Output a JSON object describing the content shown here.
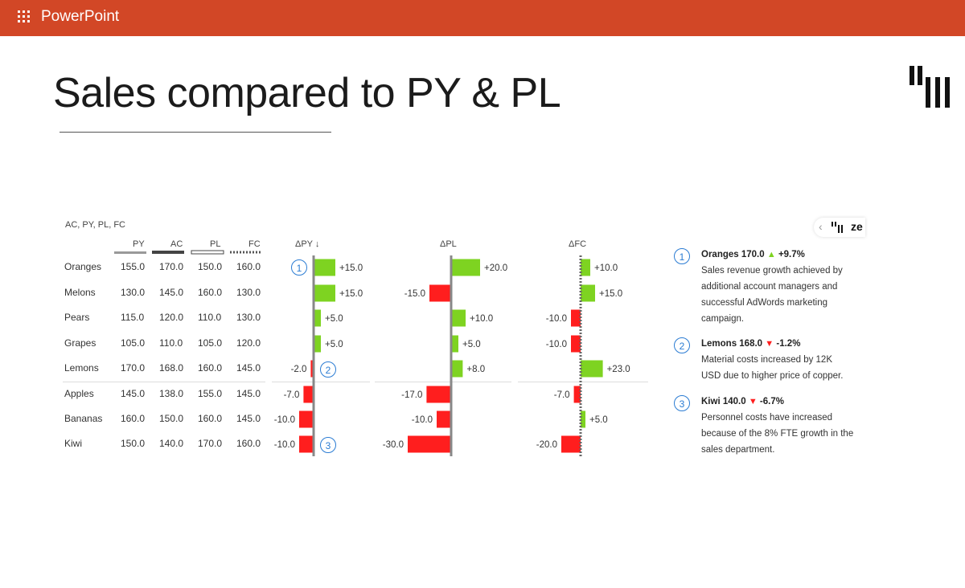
{
  "app": {
    "name": "PowerPoint"
  },
  "slide": {
    "title": "Sales compared to PY & PL"
  },
  "chart_caption": "AC, PY, PL, FC",
  "table": {
    "headers": [
      "PY",
      "AC",
      "PL",
      "FC"
    ],
    "rows": [
      {
        "label": "Oranges",
        "PY": "155.0",
        "AC": "170.0",
        "PL": "150.0",
        "FC": "160.0"
      },
      {
        "label": "Melons",
        "PY": "130.0",
        "AC": "145.0",
        "PL": "160.0",
        "FC": "130.0"
      },
      {
        "label": "Pears",
        "PY": "115.0",
        "AC": "120.0",
        "PL": "110.0",
        "FC": "130.0"
      },
      {
        "label": "Grapes",
        "PY": "105.0",
        "AC": "110.0",
        "PL": "105.0",
        "FC": "120.0"
      },
      {
        "label": "Lemons",
        "PY": "170.0",
        "AC": "168.0",
        "PL": "160.0",
        "FC": "145.0"
      },
      {
        "label": "Apples",
        "PY": "145.0",
        "AC": "138.0",
        "PL": "155.0",
        "FC": "145.0"
      },
      {
        "label": "Bananas",
        "PY": "160.0",
        "AC": "150.0",
        "PL": "160.0",
        "FC": "145.0"
      },
      {
        "label": "Kiwi",
        "PY": "150.0",
        "AC": "140.0",
        "PL": "170.0",
        "FC": "160.0"
      }
    ]
  },
  "chart_data": [
    {
      "type": "bar",
      "orientation": "horizontal",
      "title": "ΔPY ↓",
      "categories": [
        "Oranges",
        "Melons",
        "Pears",
        "Grapes",
        "Lemons",
        "Apples",
        "Bananas",
        "Kiwi"
      ],
      "values": [
        15,
        15,
        5,
        5,
        -2,
        -7,
        -10,
        -10
      ],
      "labels": [
        "+15.0",
        "+15.0",
        "+5.0",
        "+5.0",
        "-2.0",
        "-7.0",
        "-10.0",
        "-10.0"
      ]
    },
    {
      "type": "bar",
      "orientation": "horizontal",
      "title": "ΔPL",
      "categories": [
        "Oranges",
        "Melons",
        "Pears",
        "Grapes",
        "Lemons",
        "Apples",
        "Bananas",
        "Kiwi"
      ],
      "values": [
        20,
        -15,
        10,
        5,
        8,
        -17,
        -10,
        -30
      ],
      "labels": [
        "+20.0",
        "-15.0",
        "+10.0",
        "+5.0",
        "+8.0",
        "-17.0",
        "-10.0",
        "-30.0"
      ]
    },
    {
      "type": "bar",
      "orientation": "horizontal",
      "title": "ΔFC",
      "categories": [
        "Oranges",
        "Melons",
        "Pears",
        "Grapes",
        "Lemons",
        "Apples",
        "Bananas",
        "Kiwi"
      ],
      "values": [
        10,
        15,
        -10,
        -10,
        23,
        -7,
        5,
        -20
      ],
      "labels": [
        "+10.0",
        "+15.0",
        "-10.0",
        "-10.0",
        "+23.0",
        "-7.0",
        "+5.0",
        "-20.0"
      ]
    }
  ],
  "colors": {
    "positive": "#7ed321",
    "negative": "#ff1e1e",
    "accent": "#2b7cd3",
    "topbar": "#d24726"
  },
  "markers": [
    "1",
    "2",
    "3"
  ],
  "annotations": [
    {
      "num": "1",
      "head": "Oranges 170.0",
      "arrow": "▲",
      "delta": "+9.7%",
      "text": "Sales revenue growth achieved by additional account managers and successful AdWords marketing campaign."
    },
    {
      "num": "2",
      "head": "Lemons 168.0",
      "arrow": "▼",
      "delta": "-1.2%",
      "text": "Material costs increased by 12K USD due to higher price of copper."
    },
    {
      "num": "3",
      "head": "Kiwi 140.0",
      "arrow": "▼",
      "delta": "-6.7%",
      "text": "Personnel costs have increased because of the 8% FTE growth in the sales department."
    }
  ],
  "plugin_tab": {
    "icon": "chevron-left-icon",
    "text": "ze"
  }
}
